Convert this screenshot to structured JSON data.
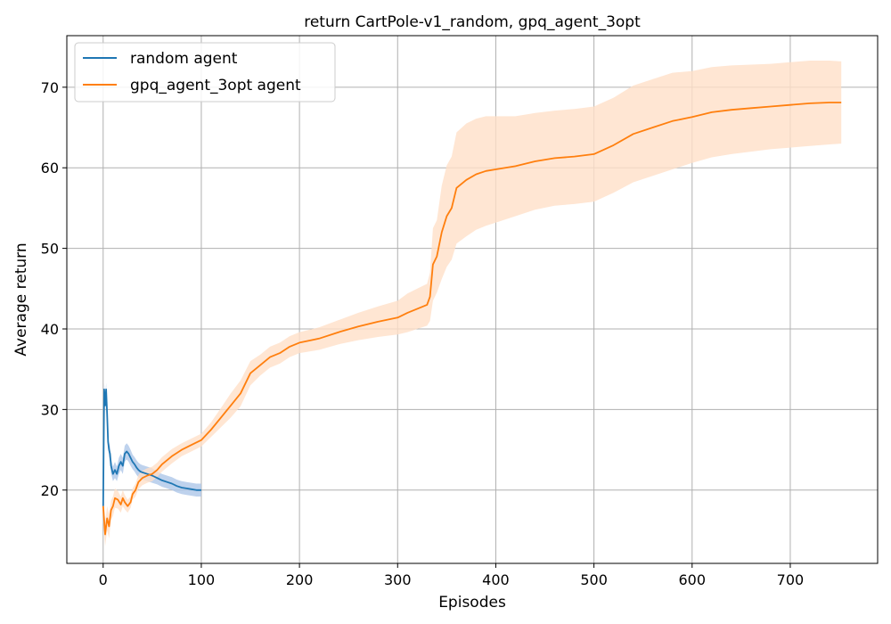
{
  "chart_data": {
    "type": "line",
    "title": "return CartPole-v1_random, gpq_agent_3opt",
    "xlabel": "Episodes",
    "ylabel": "Average return",
    "xlim": [
      -37,
      789
    ],
    "ylim": [
      10.9,
      76.4
    ],
    "xticks": [
      0,
      100,
      200,
      300,
      400,
      500,
      600,
      700
    ],
    "yticks": [
      20,
      30,
      40,
      50,
      60,
      70
    ],
    "grid": true,
    "legend_position": "upper-left",
    "series": [
      {
        "name": "random agent",
        "color": "#1f77b4",
        "band_color": "#aec7e8",
        "x": [
          0,
          1,
          2,
          3,
          4,
          5,
          6,
          7,
          8,
          10,
          12,
          14,
          16,
          18,
          20,
          22,
          24,
          26,
          28,
          30,
          32,
          34,
          36,
          38,
          40,
          45,
          50,
          55,
          60,
          65,
          70,
          75,
          80,
          85,
          90,
          95,
          100
        ],
        "y": [
          18,
          32.5,
          30.5,
          32.5,
          29.5,
          26,
          25,
          24.5,
          23,
          22,
          22.5,
          22,
          23,
          23.5,
          23,
          24.5,
          24.8,
          24.5,
          24,
          23.5,
          23.2,
          22.8,
          22.5,
          22.3,
          22.2,
          22,
          21.8,
          21.5,
          21.2,
          21,
          20.8,
          20.5,
          20.3,
          20.2,
          20.1,
          20,
          20
        ],
        "lower": [
          17.6,
          31.7,
          29.7,
          31.7,
          28.7,
          25.2,
          24.1,
          23.6,
          22.1,
          21.1,
          21.5,
          21.1,
          22,
          22.5,
          22,
          23.5,
          23.8,
          23.5,
          23,
          22.6,
          22.3,
          21.9,
          21.6,
          21.4,
          21.3,
          21.1,
          20.9,
          20.7,
          20.4,
          20.2,
          20,
          19.7,
          19.5,
          19.4,
          19.3,
          19.2,
          19.2
        ],
        "upper": [
          18.4,
          33.3,
          31.3,
          33.3,
          30.3,
          26.8,
          25.9,
          25.4,
          23.9,
          22.9,
          23.5,
          22.9,
          24,
          24.5,
          24,
          25.5,
          25.8,
          25.5,
          25,
          24.4,
          24.1,
          23.7,
          23.4,
          23.2,
          23.1,
          22.9,
          22.7,
          22.3,
          22,
          21.8,
          21.6,
          21.3,
          21.1,
          21,
          20.9,
          20.8,
          20.8
        ]
      },
      {
        "name": "gpq_agent_3opt agent",
        "color": "#ff7f0e",
        "band_color": "#ffe0c8",
        "x": [
          0,
          2,
          4,
          6,
          8,
          10,
          12,
          15,
          18,
          20,
          22,
          25,
          28,
          30,
          33,
          36,
          40,
          45,
          50,
          55,
          60,
          70,
          80,
          90,
          100,
          110,
          120,
          130,
          140,
          150,
          160,
          170,
          180,
          190,
          200,
          220,
          240,
          260,
          280,
          300,
          310,
          320,
          330,
          333,
          336,
          340,
          345,
          350,
          355,
          360,
          370,
          380,
          390,
          400,
          420,
          440,
          460,
          480,
          500,
          520,
          540,
          560,
          580,
          600,
          620,
          640,
          660,
          680,
          700,
          720,
          740,
          752
        ],
        "y": [
          18,
          14.5,
          16.5,
          15.5,
          17.5,
          18,
          19,
          18.8,
          18.2,
          19,
          18.5,
          18,
          18.5,
          19.5,
          20,
          21,
          21.5,
          21.8,
          22,
          22.5,
          23.2,
          24.2,
          25,
          25.6,
          26.2,
          27.5,
          29,
          30.5,
          32,
          34.5,
          35.5,
          36.5,
          37,
          37.8,
          38.3,
          38.8,
          39.6,
          40.3,
          40.9,
          41.4,
          42,
          42.5,
          43,
          44,
          48,
          49,
          52,
          54,
          55,
          57.5,
          58.5,
          59.2,
          59.6,
          59.8,
          60.2,
          60.8,
          61.2,
          61.4,
          61.7,
          62.8,
          64.2,
          65,
          65.8,
          66.3,
          66.9,
          67.2,
          67.4,
          67.6,
          67.8,
          68,
          68.1,
          68.1
        ],
        "lower": [
          16,
          13,
          15,
          14,
          16.3,
          16.8,
          17.8,
          17.7,
          17.2,
          18,
          17.6,
          17.2,
          17.8,
          18.8,
          19.2,
          20.1,
          20.6,
          20.9,
          21.1,
          21.6,
          22.3,
          23.3,
          24.2,
          24.8,
          25.4,
          26.6,
          27.8,
          29,
          30.4,
          33,
          34.2,
          35.2,
          35.7,
          36.5,
          37,
          37.4,
          38.1,
          38.6,
          39,
          39.3,
          39.6,
          40,
          40.4,
          41,
          43.5,
          44.5,
          46.2,
          47.7,
          48.6,
          50.6,
          51.5,
          52.3,
          52.8,
          53.2,
          54,
          54.8,
          55.3,
          55.5,
          55.8,
          56.9,
          58.2,
          59,
          59.8,
          60.6,
          61.3,
          61.7,
          62,
          62.3,
          62.5,
          62.7,
          62.9,
          63
        ],
        "upper": [
          20,
          16,
          18,
          17,
          18.7,
          19.2,
          20.2,
          19.9,
          19.2,
          20,
          19.4,
          18.8,
          19.2,
          20.2,
          20.8,
          21.9,
          22.4,
          22.7,
          22.9,
          23.4,
          24.1,
          25.1,
          25.8,
          26.4,
          27,
          28.4,
          30.2,
          32,
          33.6,
          36,
          36.8,
          37.8,
          38.3,
          39.1,
          39.6,
          40.2,
          41.1,
          42,
          42.8,
          43.5,
          44.4,
          45,
          45.6,
          47,
          52.5,
          53.5,
          57.8,
          60.3,
          61.4,
          64.4,
          65.5,
          66.1,
          66.4,
          66.4,
          66.4,
          66.8,
          67.1,
          67.3,
          67.6,
          68.7,
          70.2,
          71,
          71.8,
          72,
          72.5,
          72.7,
          72.8,
          72.9,
          73.1,
          73.3,
          73.3,
          73.2
        ]
      }
    ]
  }
}
